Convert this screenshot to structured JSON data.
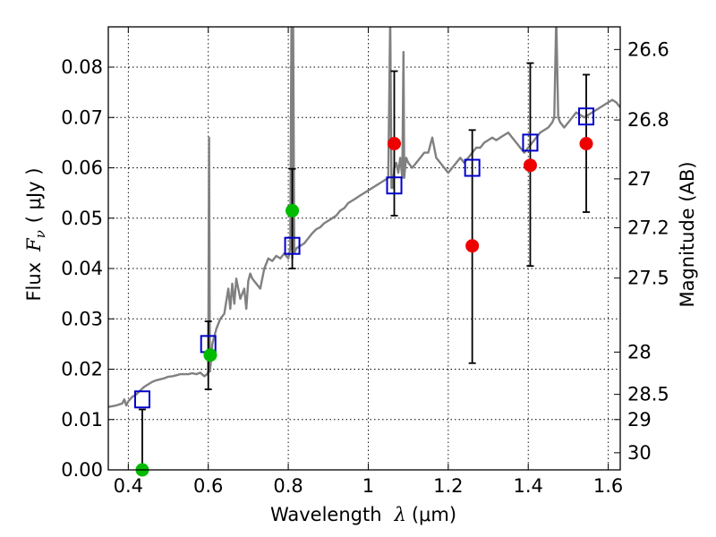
{
  "chart_data": {
    "type": "scatter",
    "xlabel_text": "Wavelength",
    "xlabel_symbol": "λ",
    "xlabel_unit": "(μm)",
    "ylabel_text": "Flux",
    "ylabel_symbol": "F",
    "ylabel_subscript": "ν",
    "ylabel_unit": "( μJy )",
    "y2label": "Magnitude (AB)",
    "xlim": [
      0.35,
      1.63
    ],
    "ylim": [
      0.0,
      0.088
    ],
    "grid": true,
    "x_ticks": [
      0.4,
      0.6,
      0.8,
      1.0,
      1.2,
      1.4,
      1.6
    ],
    "x_tick_labels": [
      "0.4",
      "0.6",
      "0.8",
      "1",
      "1.2",
      "1.4",
      "1.6"
    ],
    "y_ticks": [
      0.0,
      0.01,
      0.02,
      0.03,
      0.04,
      0.05,
      0.06,
      0.07,
      0.08
    ],
    "y_tick_labels": [
      "0.00",
      "0.01",
      "0.02",
      "0.03",
      "0.04",
      "0.05",
      "0.06",
      "0.07",
      "0.08"
    ],
    "y2_tick_labels": [
      "26.6",
      "26.8",
      "27",
      "27.2",
      "27.5",
      "28",
      "28.5",
      "29",
      "30"
    ],
    "y2_tick_flux": [
      0.0835,
      0.0695,
      0.0578,
      0.0481,
      0.0381,
      0.0234,
      0.015,
      0.01,
      0.0034
    ],
    "colors": {
      "spectrum": "#808080",
      "model_box": "#0000cc",
      "detection": "#00bb00",
      "measurement": "#ee0000",
      "errorbar": "#000000"
    },
    "series": [
      {
        "name": "Model spectrum",
        "kind": "line",
        "x": [
          0.35,
          0.37,
          0.385,
          0.39,
          0.395,
          0.4,
          0.41,
          0.42,
          0.43,
          0.44,
          0.45,
          0.46,
          0.47,
          0.48,
          0.49,
          0.5,
          0.51,
          0.52,
          0.53,
          0.54,
          0.55,
          0.56,
          0.57,
          0.58,
          0.59,
          0.597,
          0.6,
          0.602,
          0.604,
          0.606,
          0.61,
          0.62,
          0.63,
          0.64,
          0.65,
          0.655,
          0.66,
          0.665,
          0.67,
          0.68,
          0.69,
          0.695,
          0.7,
          0.705,
          0.71,
          0.72,
          0.73,
          0.74,
          0.75,
          0.76,
          0.77,
          0.78,
          0.79,
          0.8,
          0.805,
          0.808,
          0.81,
          0.812,
          0.815,
          0.82,
          0.83,
          0.84,
          0.85,
          0.86,
          0.87,
          0.88,
          0.89,
          0.9,
          0.91,
          0.92,
          0.93,
          0.94,
          0.95,
          0.96,
          0.97,
          0.98,
          0.99,
          1.0,
          1.01,
          1.02,
          1.03,
          1.04,
          1.05,
          1.055,
          1.058,
          1.06,
          1.062,
          1.065,
          1.07,
          1.075,
          1.08,
          1.085,
          1.088,
          1.09,
          1.092,
          1.095,
          1.1,
          1.11,
          1.12,
          1.13,
          1.14,
          1.15,
          1.16,
          1.17,
          1.18,
          1.19,
          1.2,
          1.21,
          1.22,
          1.23,
          1.24,
          1.25,
          1.26,
          1.27,
          1.28,
          1.29,
          1.3,
          1.31,
          1.32,
          1.33,
          1.34,
          1.35,
          1.36,
          1.37,
          1.38,
          1.39,
          1.4,
          1.41,
          1.42,
          1.43,
          1.45,
          1.46,
          1.465,
          1.47,
          1.475,
          1.48,
          1.49,
          1.5,
          1.51,
          1.52,
          1.53,
          1.54,
          1.55,
          1.56,
          1.57,
          1.58,
          1.59,
          1.6,
          1.61,
          1.62,
          1.63
        ],
        "y": [
          0.0125,
          0.0128,
          0.0132,
          0.014,
          0.0128,
          0.0136,
          0.0145,
          0.015,
          0.0158,
          0.0165,
          0.017,
          0.0175,
          0.0178,
          0.018,
          0.0182,
          0.0185,
          0.0186,
          0.0188,
          0.019,
          0.019,
          0.019,
          0.0192,
          0.019,
          0.0193,
          0.0186,
          0.019,
          0.0195,
          0.066,
          0.0195,
          0.021,
          0.025,
          0.028,
          0.03,
          0.031,
          0.036,
          0.032,
          0.037,
          0.033,
          0.038,
          0.034,
          0.036,
          0.032,
          0.0375,
          0.039,
          0.038,
          0.037,
          0.036,
          0.04,
          0.042,
          0.0415,
          0.0425,
          0.042,
          0.043,
          0.042,
          0.044,
          0.09,
          0.042,
          0.09,
          0.043,
          0.044,
          0.0445,
          0.045,
          0.046,
          0.047,
          0.0478,
          0.0482,
          0.049,
          0.0495,
          0.05,
          0.0505,
          0.0515,
          0.052,
          0.053,
          0.0535,
          0.054,
          0.0545,
          0.055,
          0.0555,
          0.056,
          0.0565,
          0.057,
          0.0575,
          0.058,
          0.09,
          0.056,
          0.0585,
          0.056,
          0.06,
          0.061,
          0.059,
          0.062,
          0.058,
          0.083,
          0.058,
          0.06,
          0.062,
          0.061,
          0.06,
          0.061,
          0.062,
          0.063,
          0.063,
          0.066,
          0.062,
          0.061,
          0.06,
          0.059,
          0.06,
          0.061,
          0.062,
          0.061,
          0.062,
          0.063,
          0.064,
          0.064,
          0.065,
          0.0655,
          0.066,
          0.0655,
          0.066,
          0.0665,
          0.067,
          0.066,
          0.065,
          0.064,
          0.063,
          0.064,
          0.065,
          0.066,
          0.067,
          0.068,
          0.069,
          0.07,
          0.09,
          0.07,
          0.069,
          0.068,
          0.069,
          0.07,
          0.071,
          0.0705,
          0.07,
          0.0705,
          0.071,
          0.0715,
          0.072,
          0.0725,
          0.073,
          0.0735,
          0.073,
          0.072
        ]
      },
      {
        "name": "Model photometry",
        "kind": "open-square",
        "x": [
          0.435,
          0.6,
          0.81,
          1.065,
          1.26,
          1.405,
          1.545
        ],
        "y": [
          0.014,
          0.025,
          0.0445,
          0.0565,
          0.06,
          0.065,
          0.0702
        ]
      },
      {
        "name": "Detections",
        "kind": "filled-circle",
        "x": [
          0.435,
          0.605,
          0.81
        ],
        "y": [
          0.0,
          0.0228,
          0.0515
        ]
      },
      {
        "name": "Measurements",
        "kind": "filled-circle",
        "x": [
          1.065,
          1.26,
          1.405,
          1.545
        ],
        "y": [
          0.0648,
          0.0445,
          0.0605,
          0.0648
        ]
      },
      {
        "name": "Error bars",
        "kind": "errorbar",
        "x": [
          0.435,
          0.6,
          0.81,
          1.065,
          1.26,
          1.405,
          1.545
        ],
        "y_low": [
          0.0,
          0.016,
          0.04,
          0.0505,
          0.0212,
          0.0405,
          0.0512
        ],
        "y_high": [
          0.012,
          0.0295,
          0.0598,
          0.0792,
          0.0675,
          0.0808,
          0.0785
        ]
      }
    ]
  }
}
